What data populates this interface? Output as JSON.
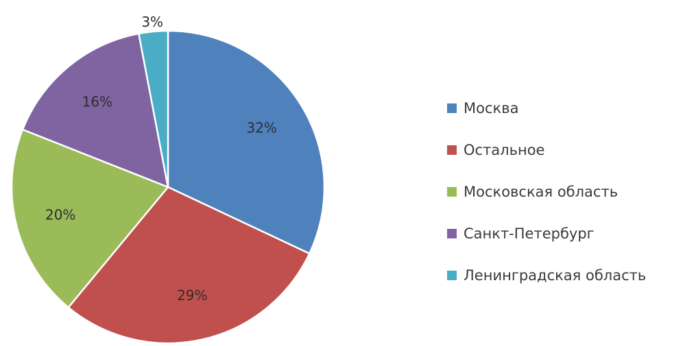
{
  "chart_data": {
    "type": "pie",
    "categories": [
      "Москва",
      "Остальное",
      "Московская область",
      "Санкт-Петербург",
      "Ленинградская область"
    ],
    "values": [
      32,
      29,
      20,
      16,
      3
    ],
    "value_labels": [
      "32%",
      "29%",
      "20%",
      "16%",
      "3%"
    ],
    "colors": [
      "#4f81bd",
      "#c0504d",
      "#9bbb59",
      "#8064a2",
      "#4bacc6"
    ],
    "title": "",
    "start_angle": "12 o'clock",
    "direction": "clockwise",
    "legend_position": "right"
  }
}
